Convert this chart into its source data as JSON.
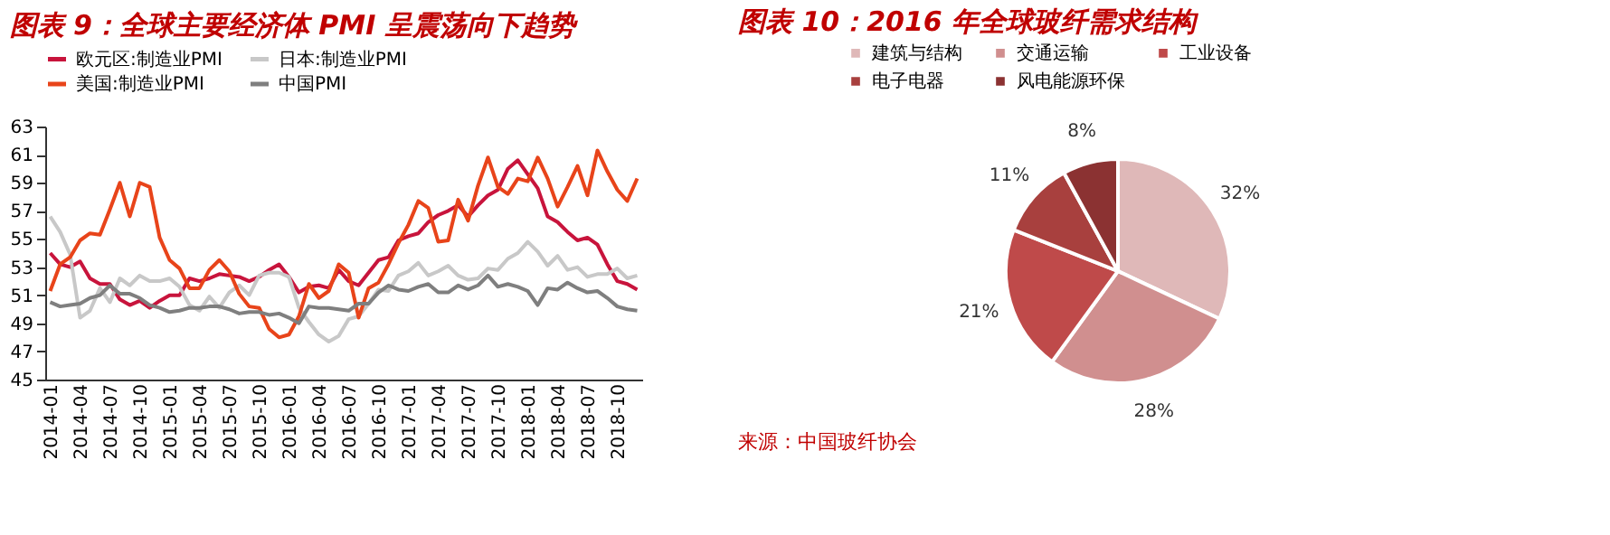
{
  "chart_data": [
    {
      "type": "line",
      "title": "图表 9：全球主要经济体 PMI 呈震荡向下趋势",
      "categories": [
        "2014-01",
        null,
        null,
        "2014-04",
        null,
        null,
        "2014-07",
        null,
        null,
        "2014-10",
        null,
        null,
        "2015-01",
        null,
        null,
        "2015-04",
        null,
        null,
        "2015-07",
        null,
        null,
        "2015-10",
        null,
        null,
        "2016-01",
        null,
        null,
        "2016-04",
        null,
        null,
        "2016-07",
        null,
        null,
        "2016-10",
        null,
        null,
        "2017-01",
        null,
        null,
        "2017-04",
        null,
        null,
        "2017-07",
        null,
        null,
        "2017-10",
        null,
        null,
        "2018-01",
        null,
        null,
        "2018-04",
        null,
        null,
        "2018-07",
        null,
        null,
        "2018-10",
        null,
        null
      ],
      "series": [
        {
          "name": "欧元区:制造业PMI",
          "color": "#c8143c",
          "values": [
            54.0,
            53.2,
            53.0,
            53.4,
            52.2,
            51.8,
            51.8,
            50.7,
            50.3,
            50.6,
            50.1,
            50.6,
            51.0,
            51.0,
            52.2,
            52.0,
            52.2,
            52.5,
            52.4,
            52.3,
            52.0,
            52.3,
            52.8,
            53.2,
            52.3,
            51.2,
            51.6,
            51.7,
            51.5,
            52.8,
            52.0,
            51.7,
            52.6,
            53.5,
            53.7,
            54.9,
            55.2,
            55.4,
            56.2,
            56.7,
            57.0,
            57.4,
            56.6,
            57.4,
            58.1,
            58.5,
            60.0,
            60.6,
            59.6,
            58.6,
            56.6,
            56.2,
            55.5,
            54.9,
            55.1,
            54.6,
            53.2,
            52.0,
            51.8,
            51.4
          ]
        },
        {
          "name": "日本:制造业PMI",
          "color": "#c8c8c8",
          "values": [
            56.6,
            55.5,
            53.9,
            49.4,
            49.9,
            51.5,
            50.5,
            52.2,
            51.7,
            52.4,
            52.0,
            52.0,
            52.2,
            51.6,
            50.3,
            49.9,
            50.9,
            50.1,
            51.2,
            51.7,
            51.0,
            52.4,
            52.6,
            52.6,
            52.3,
            50.1,
            49.1,
            48.2,
            47.7,
            48.1,
            49.3,
            49.5,
            50.4,
            51.4,
            51.3,
            52.4,
            52.7,
            53.3,
            52.4,
            52.7,
            53.1,
            52.4,
            52.1,
            52.2,
            52.9,
            52.8,
            53.6,
            54.0,
            54.8,
            54.1,
            53.1,
            53.8,
            52.8,
            53.0,
            52.3,
            52.5,
            52.5,
            52.9,
            52.2,
            52.4
          ]
        },
        {
          "name": "美国:制造业PMI",
          "color": "#e8441a",
          "values": [
            51.3,
            53.2,
            53.7,
            54.9,
            55.4,
            55.3,
            57.1,
            59.0,
            56.6,
            59.0,
            58.7,
            55.1,
            53.5,
            52.9,
            51.5,
            51.5,
            52.8,
            53.5,
            52.7,
            51.1,
            50.2,
            50.1,
            48.6,
            48.0,
            48.2,
            49.5,
            51.8,
            50.8,
            51.3,
            53.2,
            52.6,
            49.4,
            51.5,
            51.9,
            53.2,
            54.7,
            56.0,
            57.7,
            57.2,
            54.8,
            54.9,
            57.8,
            56.3,
            58.8,
            60.8,
            58.7,
            58.2,
            59.3,
            59.1,
            60.8,
            59.3,
            57.3,
            58.7,
            60.2,
            58.1,
            61.3,
            59.8,
            58.5,
            57.7,
            59.3
          ]
        },
        {
          "name": "中国PMI",
          "color": "#7f7f7f",
          "values": [
            50.5,
            50.2,
            50.3,
            50.4,
            50.8,
            51.0,
            51.7,
            51.1,
            51.1,
            50.8,
            50.3,
            50.1,
            49.8,
            49.9,
            50.1,
            50.1,
            50.2,
            50.2,
            50.0,
            49.7,
            49.8,
            49.8,
            49.6,
            49.7,
            49.4,
            49.0,
            50.2,
            50.1,
            50.1,
            50.0,
            49.9,
            50.4,
            50.4,
            51.2,
            51.7,
            51.4,
            51.3,
            51.6,
            51.8,
            51.2,
            51.2,
            51.7,
            51.4,
            51.7,
            52.4,
            51.6,
            51.8,
            51.6,
            51.3,
            50.3,
            51.5,
            51.4,
            51.9,
            51.5,
            51.2,
            51.3,
            50.8,
            50.2,
            50.0,
            49.9
          ]
        }
      ],
      "ylim": [
        45,
        63
      ],
      "yticks": [
        45,
        47,
        49,
        51,
        53,
        55,
        57,
        59,
        61,
        63
      ],
      "grid": false,
      "legend": "top",
      "line_style": "solid",
      "marker": "none"
    },
    {
      "type": "pie",
      "title": "图表 10：2016 年全球玻纤需求结构",
      "categories": [
        "建筑与结构",
        "交通运输",
        "工业设备",
        "电子电器",
        "风电能源环保"
      ],
      "values": [
        32,
        28,
        21,
        11,
        8
      ],
      "colors": [
        "#dfb8b8",
        "#d08f8f",
        "#bf4a4a",
        "#a8403e",
        "#8b3232"
      ],
      "value_labels": [
        "32%",
        "28%",
        "21%",
        "11%",
        "8%"
      ],
      "legend": "top",
      "annotations": [
        "来源：中国玻纤协会"
      ]
    }
  ]
}
